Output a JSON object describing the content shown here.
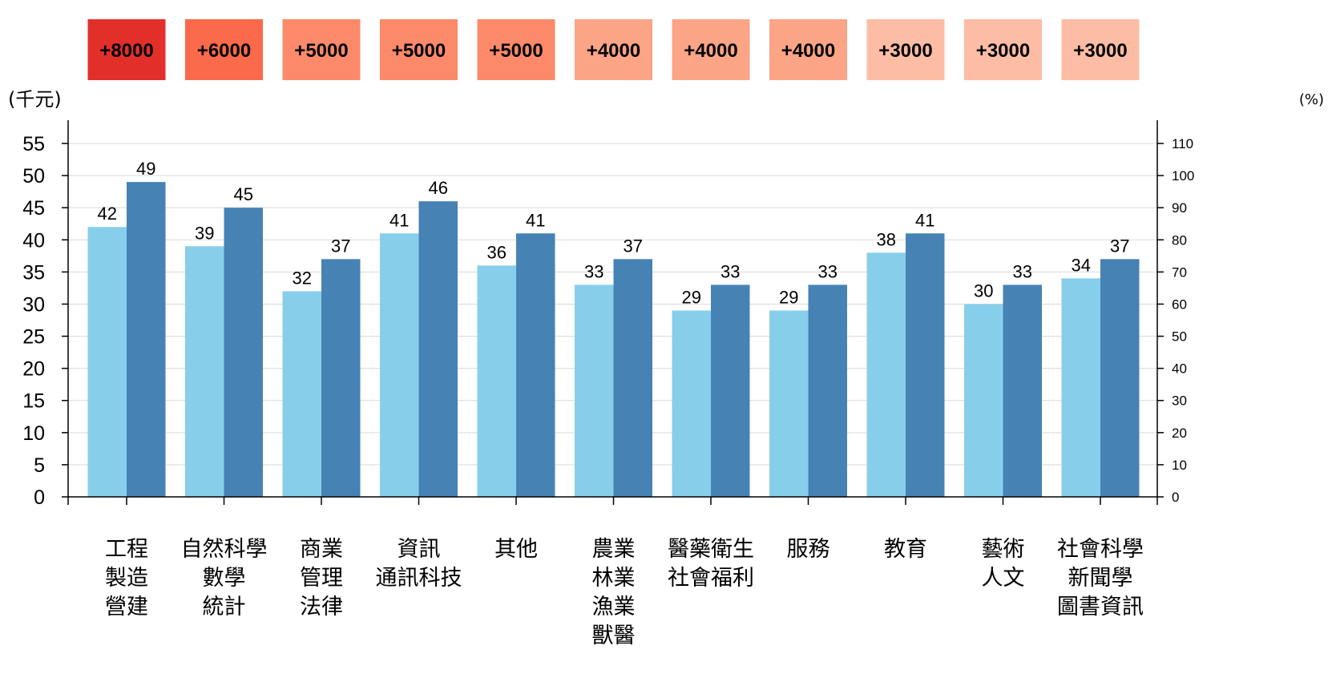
{
  "chart_data": {
    "type": "bar",
    "categories": [
      [
        "工程",
        "製造",
        "營建"
      ],
      [
        "自然科學",
        "數學",
        "統計"
      ],
      [
        "商業",
        "管理",
        "法律"
      ],
      [
        "資訊",
        "通訊科技"
      ],
      [
        "其他"
      ],
      [
        "農業",
        "林業",
        "漁業",
        "獸醫"
      ],
      [
        "醫藥衛生",
        "社會福利"
      ],
      [
        "服務"
      ],
      [
        "教育"
      ],
      [
        "藝術",
        "人文"
      ],
      [
        "社會科學",
        "新聞學",
        "圖書資訊"
      ]
    ],
    "series": [
      {
        "values": [
          42,
          39,
          32,
          41,
          36,
          33,
          29,
          29,
          38,
          30,
          34
        ],
        "color": "#87CEEB"
      },
      {
        "values": [
          49,
          45,
          37,
          46,
          41,
          37,
          33,
          33,
          41,
          33,
          37
        ],
        "color": "#4682B4"
      }
    ],
    "differences": [
      "+8000",
      "+6000",
      "+5000",
      "+5000",
      "+5000",
      "+4000",
      "+4000",
      "+4000",
      "+3000",
      "+3000",
      "+3000"
    ],
    "difference_colors": [
      "#E32F2A",
      "#FB6A4A",
      "#FC8A6A",
      "#FC8A6A",
      "#FC8A6A",
      "#FCA486",
      "#FCA486",
      "#FCA486",
      "#FDBDA4",
      "#FDBDA4",
      "#FDBDA4"
    ],
    "ylabel": "(千元)",
    "y2label": "(%)",
    "ylim": [
      0,
      55
    ],
    "y_ticks": [
      0,
      5,
      10,
      15,
      20,
      25,
      30,
      35,
      40,
      45,
      50,
      55
    ],
    "y2lim": [
      0,
      110
    ],
    "y2_ticks": [
      0,
      10,
      20,
      30,
      40,
      50,
      60,
      70,
      80,
      90,
      100,
      110
    ],
    "grid": true,
    "legend": "none"
  }
}
